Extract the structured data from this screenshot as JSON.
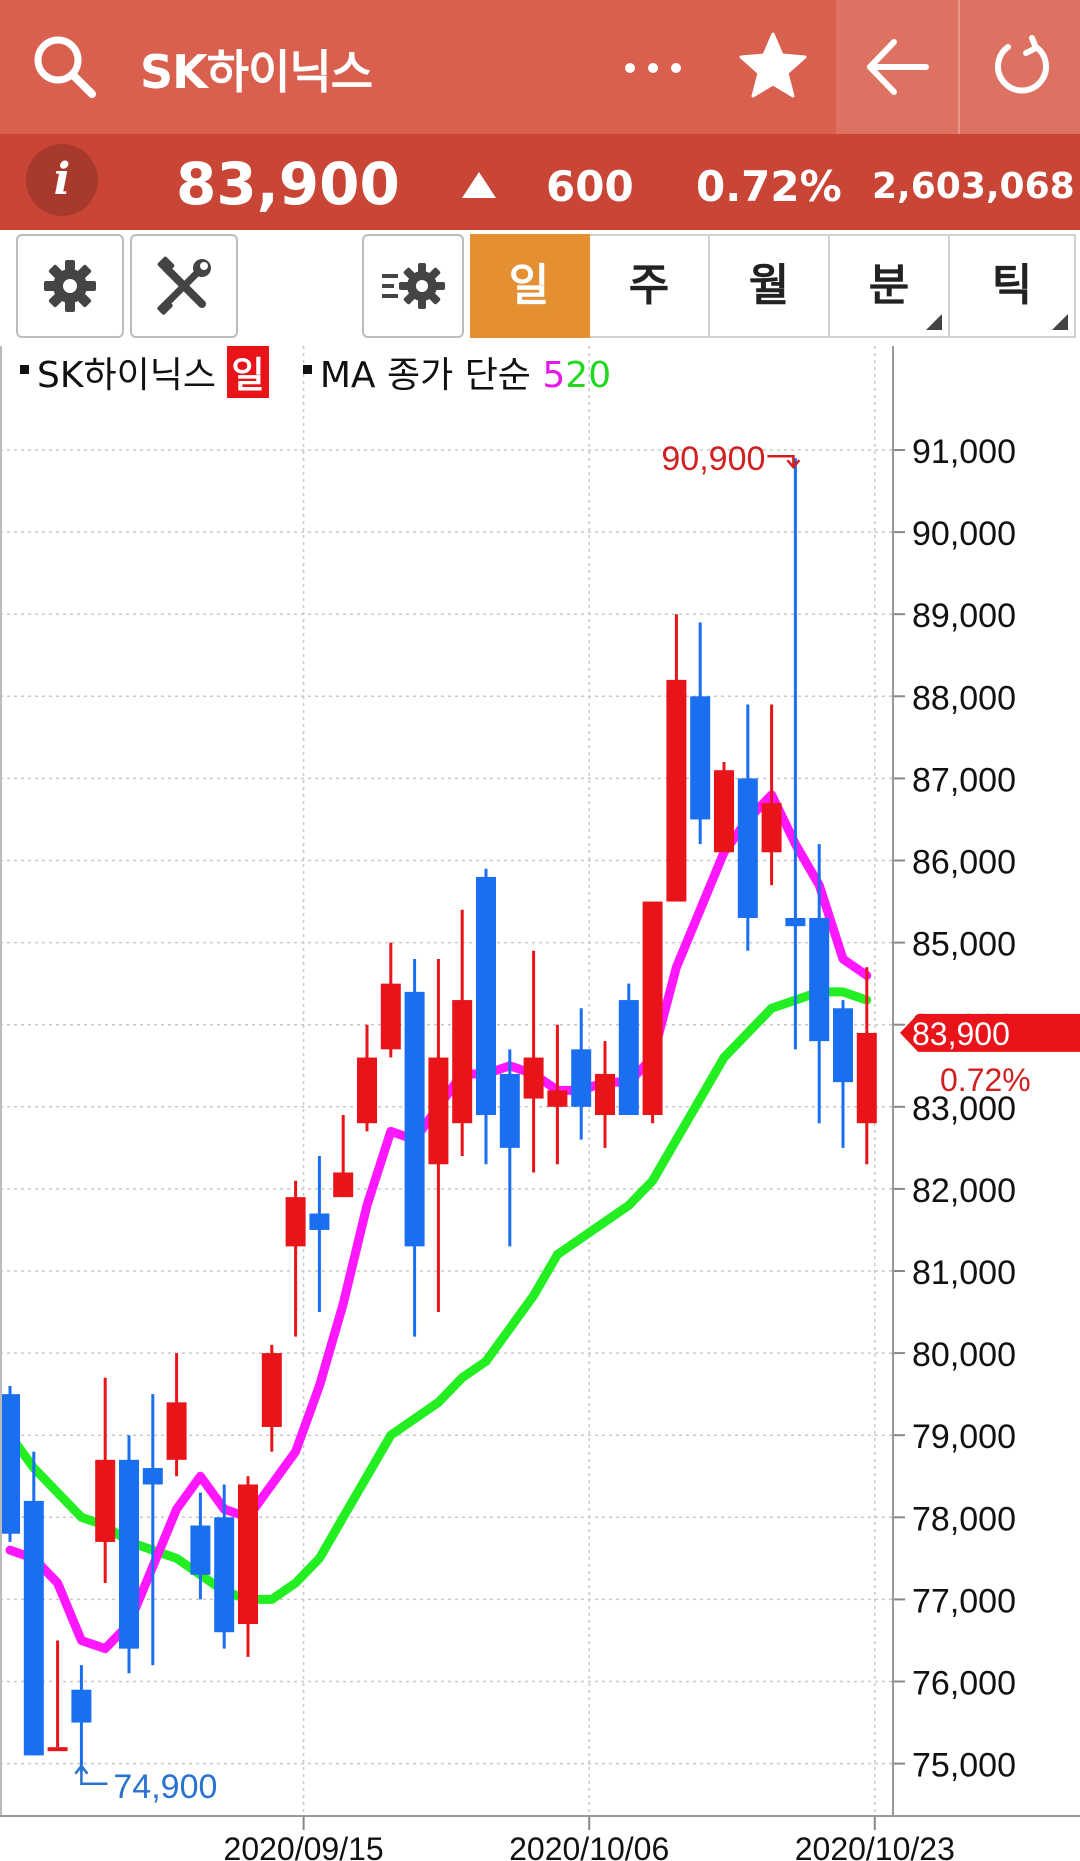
{
  "header": {
    "title": "SK하이닉스",
    "icons": [
      "search-icon",
      "more-icon",
      "star-icon",
      "back-arrow-icon",
      "refresh-icon"
    ]
  },
  "quote": {
    "price": "83,900",
    "change": "600",
    "change_rate": "0.72%",
    "volume": "2,603,068",
    "direction": "up"
  },
  "toolbar": {
    "tools": [
      "gear-icon",
      "tools-icon",
      "indicator-settings-icon"
    ],
    "periods": [
      {
        "label": "일",
        "active": true
      },
      {
        "label": "주",
        "active": false
      },
      {
        "label": "월",
        "active": false
      },
      {
        "label": "분",
        "active": false
      },
      {
        "label": "틱",
        "active": false
      }
    ]
  },
  "legend": {
    "name": "SK하이닉스",
    "period": "일",
    "ma_label": "MA 종가 단순",
    "ma_short": "5",
    "ma_long": "20"
  },
  "colors": {
    "header": "#d9604e",
    "pricebar": "#c94536",
    "up": "#e8141a",
    "down": "#1a6ef0",
    "ma5": "#ff18ff",
    "ma20": "#22ee22",
    "active_tab": "#e58f33"
  },
  "chart_data": {
    "type": "candlestick",
    "ylim": [
      74400,
      91800
    ],
    "y_ticks": [
      "91,000",
      "90,000",
      "89,000",
      "88,000",
      "87,000",
      "86,000",
      "85,000",
      "84,000",
      "83,000",
      "82,000",
      "81,000",
      "80,000",
      "79,000",
      "78,000",
      "77,000",
      "76,000",
      "75,000"
    ],
    "y_tick_values": [
      91000,
      90000,
      89000,
      88000,
      87000,
      86000,
      85000,
      84000,
      83000,
      82000,
      81000,
      80000,
      79000,
      78000,
      77000,
      76000,
      75000
    ],
    "x_labels": [
      "2020/09/15",
      "2020/10/06",
      "2020/10/23"
    ],
    "high_label": "90,900",
    "low_label": "74,900",
    "last_label": "83,900",
    "last_rate": "0.72%",
    "last_value": 83900,
    "candles": [
      {
        "open": 79500,
        "close": 77800,
        "high": 79600,
        "low": 77700
      },
      {
        "open": 78200,
        "close": 75100,
        "high": 78800,
        "low": 75100
      },
      {
        "open": 75200,
        "close": 75200,
        "high": 76500,
        "low": 75200
      },
      {
        "open": 75900,
        "close": 75500,
        "high": 76200,
        "low": 74900
      },
      {
        "open": 77700,
        "close": 78700,
        "high": 79700,
        "low": 77200
      },
      {
        "open": 78700,
        "close": 76400,
        "high": 79000,
        "low": 76100
      },
      {
        "open": 78600,
        "close": 78400,
        "high": 79500,
        "low": 76200
      },
      {
        "open": 78700,
        "close": 79400,
        "high": 80000,
        "low": 78500
      },
      {
        "open": 77900,
        "close": 77300,
        "high": 78300,
        "low": 77000
      },
      {
        "open": 78000,
        "close": 76600,
        "high": 78400,
        "low": 76400
      },
      {
        "open": 76700,
        "close": 78400,
        "high": 78500,
        "low": 76300
      },
      {
        "open": 79100,
        "close": 80000,
        "high": 80100,
        "low": 78800
      },
      {
        "open": 81300,
        "close": 81900,
        "high": 82100,
        "low": 80200
      },
      {
        "open": 81700,
        "close": 81500,
        "high": 82400,
        "low": 80500
      },
      {
        "open": 81900,
        "close": 82200,
        "high": 82900,
        "low": 81900
      },
      {
        "open": 82800,
        "close": 83600,
        "high": 84000,
        "low": 82700
      },
      {
        "open": 83700,
        "close": 84500,
        "high": 85000,
        "low": 83600
      },
      {
        "open": 84400,
        "close": 81300,
        "high": 84800,
        "low": 80200
      },
      {
        "open": 82300,
        "close": 83600,
        "high": 84800,
        "low": 80500
      },
      {
        "open": 82800,
        "close": 84300,
        "high": 85400,
        "low": 82400
      },
      {
        "open": 85800,
        "close": 82900,
        "high": 85900,
        "low": 82300
      },
      {
        "open": 83400,
        "close": 82500,
        "high": 83700,
        "low": 81300
      },
      {
        "open": 83100,
        "close": 83600,
        "high": 84900,
        "low": 82200
      },
      {
        "open": 83000,
        "close": 83200,
        "high": 84000,
        "low": 82300
      },
      {
        "open": 83700,
        "close": 83000,
        "high": 84200,
        "low": 82600
      },
      {
        "open": 82900,
        "close": 83400,
        "high": 83800,
        "low": 82500
      },
      {
        "open": 84300,
        "close": 82900,
        "high": 84500,
        "low": 82900
      },
      {
        "open": 82900,
        "close": 85500,
        "high": 85500,
        "low": 82800
      },
      {
        "open": 85500,
        "close": 88200,
        "high": 89000,
        "low": 85500
      },
      {
        "open": 88000,
        "close": 86500,
        "high": 88900,
        "low": 86200
      },
      {
        "open": 86100,
        "close": 87100,
        "high": 87200,
        "low": 86100
      },
      {
        "open": 87000,
        "close": 85300,
        "high": 87900,
        "low": 84900
      },
      {
        "open": 86100,
        "close": 86700,
        "high": 87900,
        "low": 85700
      },
      {
        "open": 85300,
        "close": 85200,
        "high": 90900,
        "low": 83700
      },
      {
        "open": 85300,
        "close": 83800,
        "high": 86200,
        "low": 82800
      },
      {
        "open": 84200,
        "close": 83300,
        "high": 84300,
        "low": 82500
      },
      {
        "open": 82800,
        "close": 83900,
        "high": 84700,
        "low": 82300
      }
    ],
    "ma5": [
      77600,
      77500,
      77200,
      76500,
      76400,
      76700,
      77400,
      78100,
      78500,
      78100,
      78000,
      78400,
      78800,
      79600,
      80600,
      81800,
      82700,
      82600,
      83000,
      83400,
      83400,
      83500,
      83400,
      83200,
      83200,
      83300,
      83300,
      83600,
      84700,
      85400,
      86100,
      86500,
      86800,
      86200,
      85700,
      84800,
      84600
    ],
    "ma20": [
      79000,
      78600,
      78300,
      78000,
      77900,
      77700,
      77600,
      77500,
      77300,
      77100,
      77000,
      77000,
      77200,
      77500,
      78000,
      78500,
      79000,
      79200,
      79400,
      79700,
      79900,
      80300,
      80700,
      81200,
      81400,
      81600,
      81800,
      82100,
      82600,
      83100,
      83600,
      83900,
      84200,
      84300,
      84400,
      84400,
      84300
    ]
  }
}
